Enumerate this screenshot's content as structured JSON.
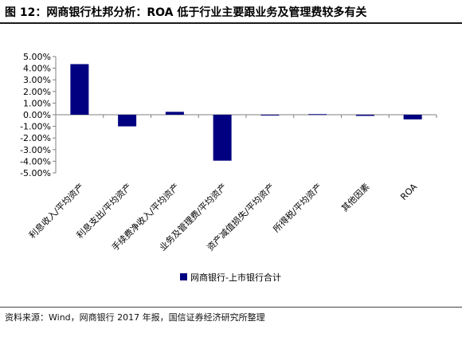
{
  "header": {
    "title": "图 12：网商银行杜邦分析：ROA 低于行业主要跟业务及管理费较多有关"
  },
  "footer": {
    "source": "资料来源：Wind，网商银行 2017 年报，国信证券经济研究所整理"
  },
  "chart_data": {
    "type": "bar",
    "categories": [
      "利息收入/平均资产",
      "利息支出/平均资产",
      "手续费净收入/平均资产",
      "业务及管理费/平均资产",
      "资产减值损失/平均资产",
      "所得税/平均资产",
      "其他因素",
      "ROA"
    ],
    "series": [
      {
        "name": "网商银行-上市银行合计",
        "values": [
          4.35,
          -1.0,
          0.25,
          -3.95,
          -0.02,
          0.05,
          -0.1,
          -0.4
        ]
      }
    ],
    "yticks": [
      "5.00%",
      "4.00%",
      "3.00%",
      "2.00%",
      "1.00%",
      "0.00%",
      "-1.00%",
      "-2.00%",
      "-3.00%",
      "-4.00%",
      "-5.00%"
    ],
    "ylim": [
      -5,
      5
    ],
    "unit": "%",
    "grid": false,
    "legend": "bottom",
    "bar_color": "#000080"
  }
}
